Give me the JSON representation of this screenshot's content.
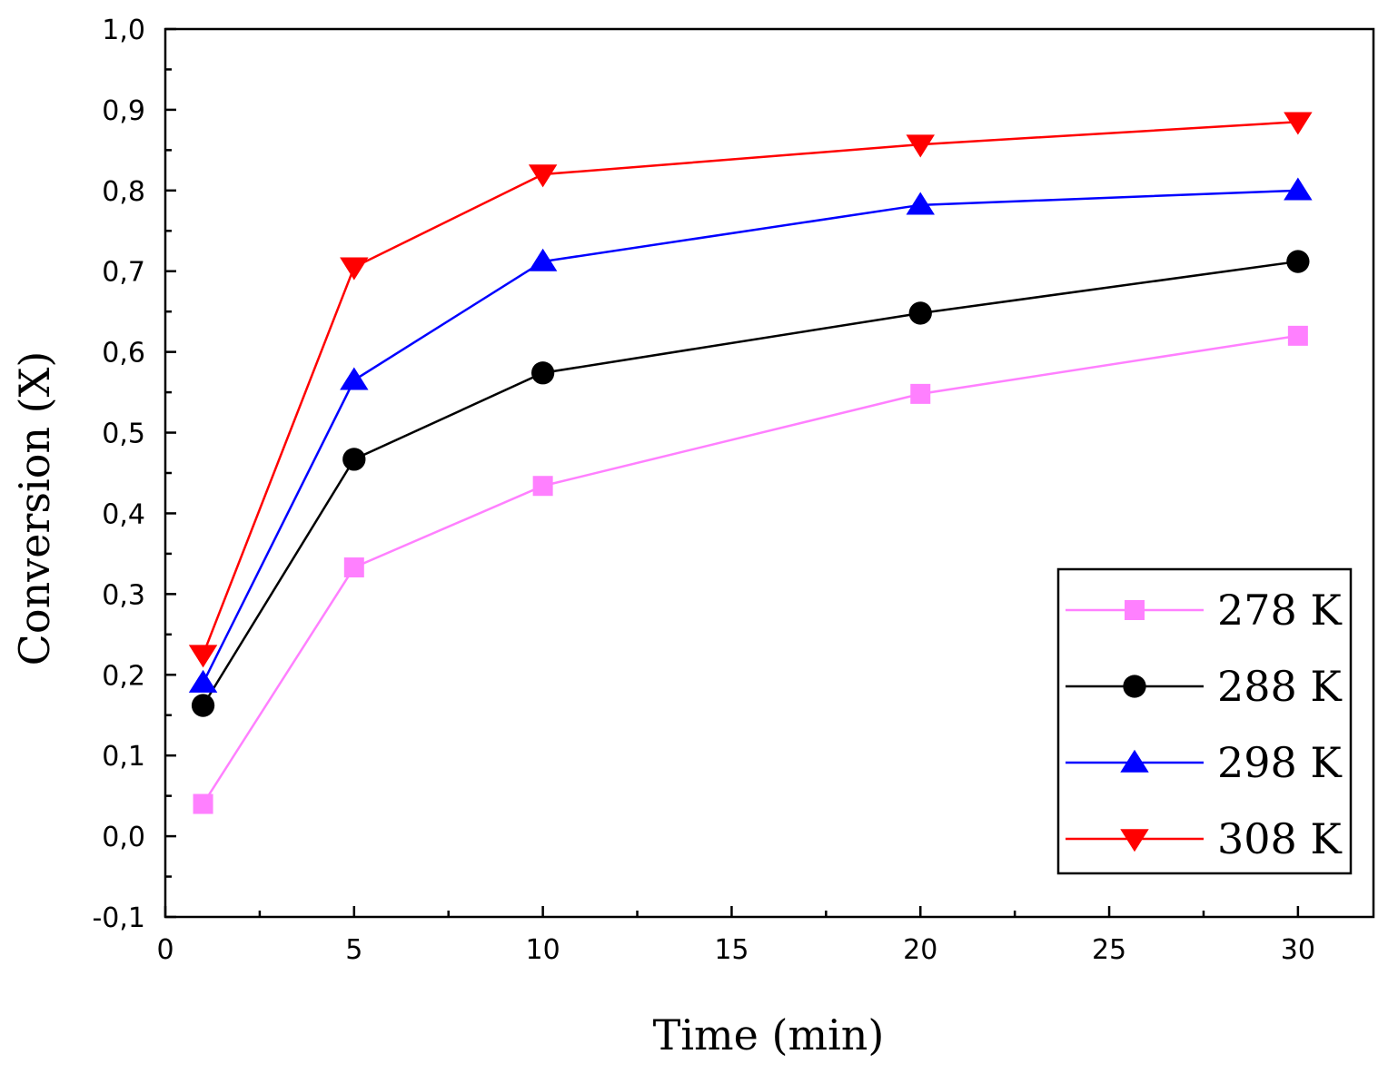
{
  "chart_data": {
    "type": "line",
    "title": "",
    "xlabel": "Time (min)",
    "ylabel": "Conversion (X)",
    "xlim": [
      0,
      32
    ],
    "ylim": [
      -0.1,
      1.0
    ],
    "x_major_ticks": [
      0,
      5,
      10,
      15,
      20,
      25,
      30
    ],
    "x_tick_labels": [
      "0",
      "5",
      "10",
      "15",
      "20",
      "25",
      "30"
    ],
    "y_major_ticks": [
      -0.1,
      0.0,
      0.1,
      0.2,
      0.3,
      0.4,
      0.5,
      0.6,
      0.7,
      0.8,
      0.9,
      1.0
    ],
    "y_tick_labels": [
      "-0,1",
      "0,0",
      "0,1",
      "0,2",
      "0,3",
      "0,4",
      "0,5",
      "0,6",
      "0,7",
      "0,8",
      "0,9",
      "1,0"
    ],
    "grid": false,
    "legend_position": "bottom-right",
    "x": [
      1,
      5,
      10,
      20,
      30
    ],
    "series": [
      {
        "name": "278 K",
        "color": "#ff80ff",
        "marker": "square",
        "values": [
          0.04,
          0.333,
          0.434,
          0.548,
          0.62
        ]
      },
      {
        "name": "288 K",
        "color": "#000000",
        "marker": "circle",
        "values": [
          0.162,
          0.467,
          0.574,
          0.648,
          0.712
        ]
      },
      {
        "name": "298 K",
        "color": "#0000ff",
        "marker": "triangle-up",
        "values": [
          0.19,
          0.565,
          0.712,
          0.782,
          0.8
        ]
      },
      {
        "name": "308 K",
        "color": "#ff0000",
        "marker": "triangle-down",
        "values": [
          0.225,
          0.705,
          0.82,
          0.857,
          0.885
        ]
      }
    ]
  }
}
